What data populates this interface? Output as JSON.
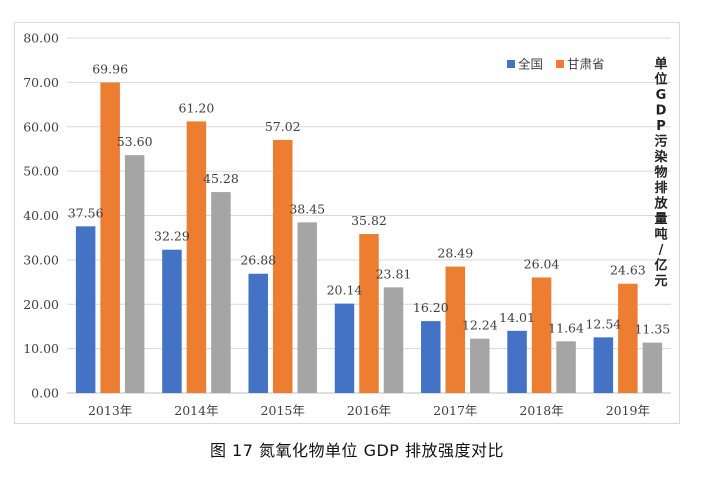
{
  "caption": "图 17 氮氧化物单位 GDP 排放强度对比",
  "chart_data": {
    "type": "bar",
    "categories": [
      "2013年",
      "2014年",
      "2015年",
      "2016年",
      "2017年",
      "2018年",
      "2019年"
    ],
    "series": [
      {
        "name": "全国",
        "color": "#4472C4",
        "values": [
          37.56,
          32.29,
          26.88,
          20.14,
          16.2,
          14.01,
          12.54
        ],
        "labels": [
          "37.56",
          "32.29",
          "26.88",
          "20.14",
          "16.20",
          "14.01",
          "12.54"
        ]
      },
      {
        "name": "甘肃省",
        "color": "#ED7D31",
        "values": [
          69.96,
          61.2,
          57.02,
          35.82,
          28.49,
          26.04,
          24.63
        ],
        "labels": [
          "69.96",
          "61.20",
          "57.02",
          "35.82",
          "28.49",
          "26.04",
          "24.63"
        ]
      },
      {
        "name": "",
        "color": "#A5A5A5",
        "values": [
          53.6,
          45.28,
          38.45,
          23.81,
          12.24,
          11.64,
          11.35
        ],
        "labels": [
          "53.60",
          "45.28",
          "38.45",
          "23.81",
          "12.24",
          "11.64",
          "11.35"
        ]
      }
    ],
    "yticks": [
      "0.00",
      "10.00",
      "20.00",
      "30.00",
      "40.00",
      "50.00",
      "60.00",
      "70.00",
      "80.00"
    ],
    "ylim": [
      0,
      80
    ],
    "ylabel": "单位GDP污染物排放量吨/亿元",
    "xlabel": "",
    "title": "",
    "grid": true,
    "legend_position": "top-right"
  }
}
